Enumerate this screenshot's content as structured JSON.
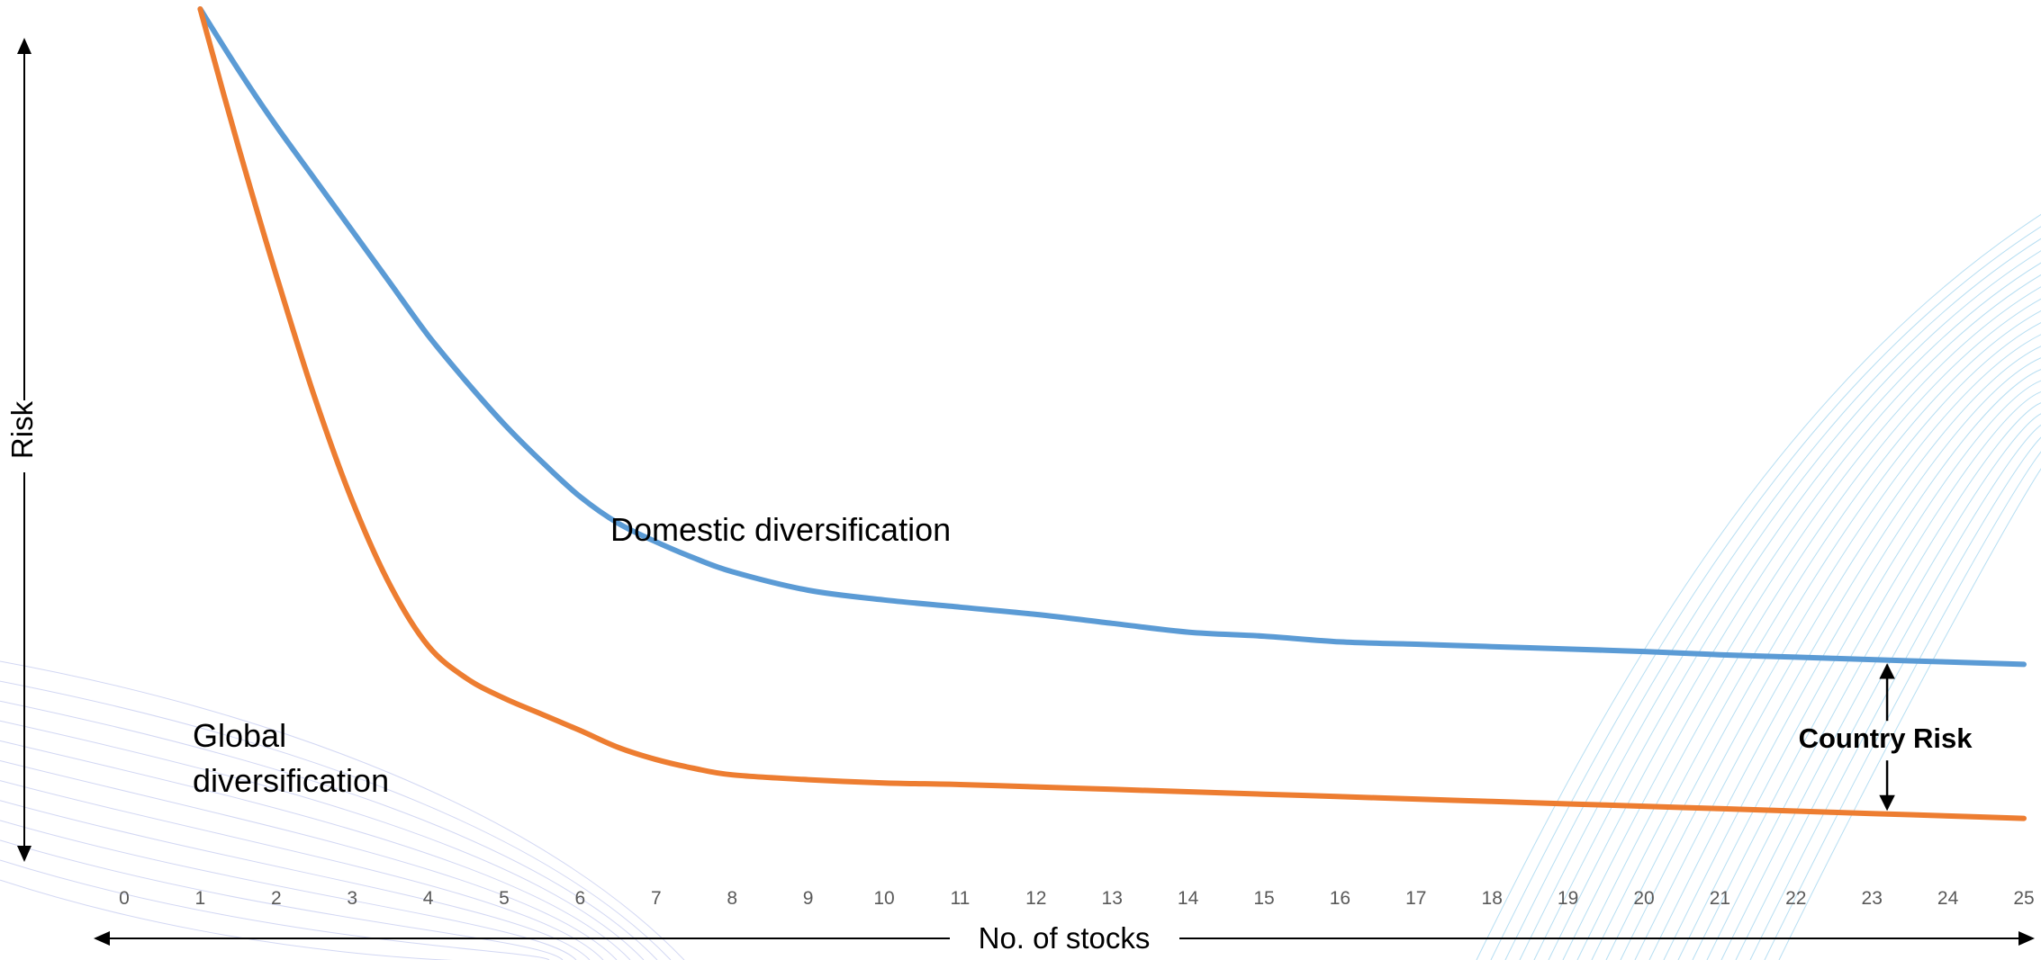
{
  "chart_data": {
    "type": "line",
    "title": "",
    "xlabel": "No. of stocks",
    "ylabel": "Risk",
    "x": [
      1,
      1.5,
      2,
      2.5,
      3,
      3.5,
      4,
      4.5,
      5,
      5.5,
      6,
      6.5,
      7,
      7.5,
      8,
      9,
      10,
      11,
      12,
      13,
      14,
      15,
      16,
      17,
      18,
      19,
      20,
      21,
      22,
      23,
      24,
      25
    ],
    "xlim": [
      0,
      25
    ],
    "ylim": [
      0,
      100
    ],
    "xticks": [
      "0",
      "1",
      "2",
      "3",
      "4",
      "5",
      "6",
      "7",
      "8",
      "9",
      "10",
      "11",
      "12",
      "13",
      "14",
      "15",
      "16",
      "17",
      "18",
      "19",
      "20",
      "21",
      "22",
      "23",
      "24",
      "25"
    ],
    "y_ticks_shown": false,
    "grid": false,
    "legend": "none",
    "series": [
      {
        "name": "Domestic diversification",
        "color": "#5B9BD5",
        "values": [
          100,
          92.5,
          85.5,
          79,
          72.5,
          66,
          59.5,
          53.8,
          48.5,
          43.8,
          39.5,
          36.2,
          33.9,
          31.9,
          30.2,
          27.9,
          26.7,
          25.8,
          24.9,
          23.8,
          22.7,
          22.2,
          21.5,
          21.2,
          20.9,
          20.6,
          20.3,
          19.9,
          19.6,
          19.3,
          19.0,
          18.7
        ]
      },
      {
        "name": "Global diversification",
        "color": "#ED7D31",
        "values": [
          100,
          83,
          67,
          52,
          39,
          28.5,
          21,
          17,
          14.5,
          12.5,
          10.5,
          8.4,
          6.9,
          5.8,
          5.0,
          4.4,
          4.0,
          3.8,
          3.5,
          3.2,
          2.9,
          2.6,
          2.3,
          2.0,
          1.7,
          1.4,
          1.1,
          0.8,
          0.5,
          0.2,
          -0.1,
          -0.4
        ]
      }
    ],
    "annotations": [
      {
        "text": "Country Risk",
        "x": 23.2
      }
    ]
  },
  "labels": {
    "domestic": "Domestic diversification",
    "global_line1": "Global",
    "global_line2": "diversification"
  }
}
